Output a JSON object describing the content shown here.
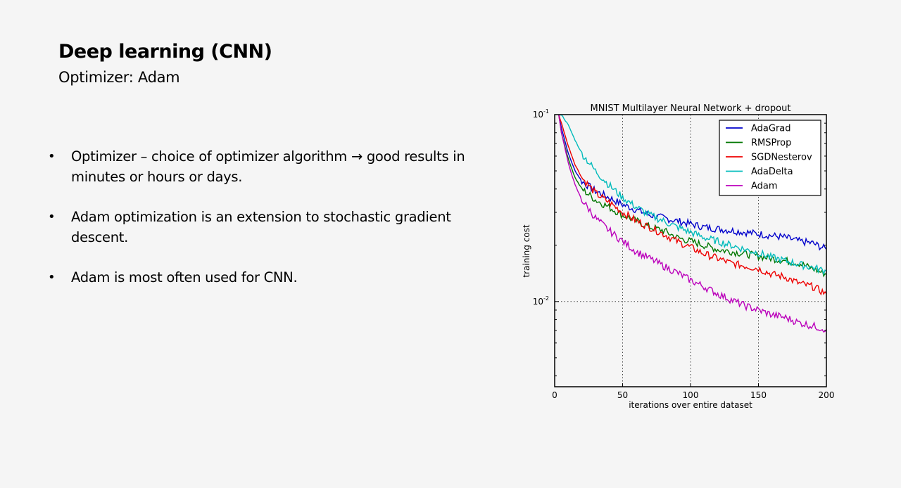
{
  "slide": {
    "title": "Deep learning (CNN)",
    "subtitle": "Optimizer: Adam",
    "bullets": [
      {
        "lines": [
          "Optimizer – choice of optimizer algorithm → good results in",
          "minutes or hours or days."
        ]
      },
      {
        "lines": [
          "Adam optimization is an extension to stochastic gradient",
          "descent."
        ]
      },
      {
        "lines": [
          "Adam is most often used for CNN."
        ]
      }
    ],
    "bullet_symbol": "•"
  },
  "chart_data": {
    "type": "line",
    "title": "MNIST Multilayer Neural Network + dropout",
    "xlabel": "iterations over entire dataset",
    "ylabel": "training cost",
    "xlim": [
      0,
      200
    ],
    "ylim": [
      0.0035,
      0.1
    ],
    "yscale": "log",
    "xticks": [
      0,
      50,
      100,
      150,
      200
    ],
    "xtick_labels": [
      "0",
      "50",
      "100",
      "150",
      "200"
    ],
    "yticks": [
      0.1,
      0.01
    ],
    "ytick_labels": [
      {
        "base": "10",
        "exp": "-1"
      },
      {
        "base": "10",
        "exp": "-2"
      }
    ],
    "grid": true,
    "legend": "top-right",
    "series": [
      {
        "name": "AdaGrad",
        "color": "#0000cc",
        "x": [
          3,
          5,
          10,
          15,
          20,
          30,
          40,
          50,
          60,
          70,
          80,
          90,
          100,
          110,
          120,
          130,
          140,
          150,
          160,
          170,
          180,
          190,
          200
        ],
        "y": [
          0.1,
          0.085,
          0.062,
          0.05,
          0.044,
          0.039,
          0.036,
          0.033,
          0.031,
          0.029,
          0.028,
          0.027,
          0.026,
          0.025,
          0.0245,
          0.024,
          0.0235,
          0.023,
          0.0225,
          0.022,
          0.021,
          0.0205,
          0.019
        ]
      },
      {
        "name": "RMSProp",
        "color": "#007700",
        "x": [
          3,
          5,
          10,
          15,
          20,
          30,
          40,
          50,
          60,
          70,
          80,
          90,
          100,
          110,
          120,
          130,
          140,
          150,
          160,
          170,
          180,
          190,
          200
        ],
        "y": [
          0.1,
          0.08,
          0.058,
          0.046,
          0.04,
          0.035,
          0.032,
          0.029,
          0.027,
          0.025,
          0.024,
          0.022,
          0.021,
          0.02,
          0.019,
          0.0185,
          0.018,
          0.0175,
          0.017,
          0.0165,
          0.016,
          0.015,
          0.014
        ]
      },
      {
        "name": "SGDNesterov",
        "color": "#ee0000",
        "x": [
          3,
          5,
          10,
          15,
          20,
          30,
          40,
          50,
          60,
          70,
          80,
          90,
          100,
          110,
          120,
          130,
          140,
          150,
          160,
          170,
          180,
          190,
          200
        ],
        "y": [
          0.1,
          0.09,
          0.068,
          0.054,
          0.046,
          0.038,
          0.034,
          0.03,
          0.027,
          0.025,
          0.023,
          0.021,
          0.0195,
          0.018,
          0.017,
          0.016,
          0.0155,
          0.015,
          0.014,
          0.0135,
          0.0125,
          0.012,
          0.011
        ]
      },
      {
        "name": "AdaDelta",
        "color": "#00bbbb",
        "x": [
          3,
          5,
          10,
          15,
          20,
          30,
          40,
          50,
          60,
          70,
          80,
          90,
          100,
          110,
          120,
          130,
          140,
          150,
          160,
          170,
          180,
          190,
          200
        ],
        "y": [
          0.1,
          0.1,
          0.088,
          0.073,
          0.062,
          0.05,
          0.042,
          0.036,
          0.032,
          0.029,
          0.027,
          0.025,
          0.0235,
          0.022,
          0.021,
          0.02,
          0.019,
          0.0182,
          0.0172,
          0.0165,
          0.0158,
          0.0152,
          0.0145
        ]
      },
      {
        "name": "Adam",
        "color": "#bb00bb",
        "x": [
          3,
          5,
          10,
          15,
          20,
          30,
          40,
          50,
          60,
          70,
          80,
          90,
          100,
          110,
          120,
          130,
          140,
          150,
          160,
          170,
          180,
          190,
          200
        ],
        "y": [
          0.1,
          0.08,
          0.055,
          0.042,
          0.035,
          0.028,
          0.024,
          0.021,
          0.0185,
          0.017,
          0.0155,
          0.0143,
          0.013,
          0.012,
          0.011,
          0.0102,
          0.0095,
          0.009,
          0.0085,
          0.0082,
          0.0077,
          0.0074,
          0.0071
        ]
      }
    ]
  }
}
